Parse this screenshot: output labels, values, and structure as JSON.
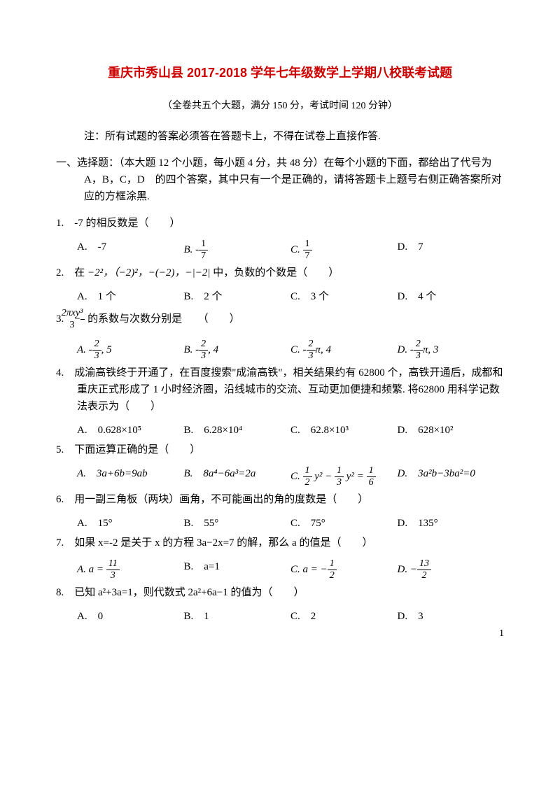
{
  "title": "重庆市秀山县 2017-2018 学年七年级数学上学期八校联考试题",
  "subtitle": "（全卷共五个大题，满分 150 分，考试时间 120 分钟）",
  "note": "注：所有试题的答案必须答在答题卡上，不得在试卷上直接作答.",
  "section1": "一、选择题：（本大题 12 个小题，每小题 4 分，共 48 分）在每个小题的下面，都给出了代号为 A，B，C，D　的四个答案，其中只有一个是正确的，请将答题卡上题号右侧正确答案所对应的方框涂黑.",
  "q1": {
    "stem": "-7 的相反数是（　　）",
    "A": "A.　-7",
    "B_pre": "B. -",
    "B_num": "1",
    "B_den": "7",
    "C_pre": "C. ",
    "C_num": "1",
    "C_den": "7",
    "D": "D.　7"
  },
  "q2": {
    "pre": "在 ",
    "expr": "−2²，（−2)²，−(−2)，−|−2| ",
    "post": "中，负数的个数是（　　）",
    "A": "A.　1 个",
    "B": "B.　2 个",
    "C": "C.　3 个",
    "D": "D.　4 个"
  },
  "q3": {
    "pre": "",
    "frac_num": "2πxy³",
    "frac_den": "3",
    "post": " 的系数与次数分别是　　（　　）",
    "A_pre": "A. -",
    "A_num": "2",
    "A_den": "3",
    "A_post": ", 5",
    "B_pre": "B. -",
    "B_num": "2",
    "B_den": "3",
    "B_post": ", 4",
    "C_pre": "C. -",
    "C_num": "2",
    "C_den": "3",
    "C_post": "π, 4",
    "D_pre": "D. -",
    "D_num": "2",
    "D_den": "3",
    "D_post": "π, 3"
  },
  "q4": {
    "stem": "成渝高铁终于开通了，在百度搜索\"成渝高铁\"，相关结果约有 62800 个，高铁开通后，成都和重庆正式形成了 1 小时经济圈，沿线城市的交流、互动更加便捷和频繁. 将62800 用科学记数法表示为（　　）",
    "A": "A.　0.628×10⁵",
    "B": "B.　6.28×10⁴",
    "C": "C.　62.8×10³",
    "D": "D.　628×10²"
  },
  "q5": {
    "stem": "下面运算正确的是（　　）",
    "A": "A.　3a+6b=9ab",
    "B": "B.　8a⁴−6a³=2a",
    "C_pre": "C. ",
    "C_n1": "1",
    "C_d1": "2",
    "C_mid": " y² − ",
    "C_n2": "1",
    "C_d2": "3",
    "C_mid2": " y² = ",
    "C_n3": "1",
    "C_d3": "6",
    "D": "D.　3a²b−3ba²=0"
  },
  "q6": {
    "stem": "用一副三角板（两块）画角，不可能画出的角的度数是（　　）",
    "A": "A.　15°",
    "B": "B.　55°",
    "C": "C.　75°",
    "D": "D.　135°"
  },
  "q7": {
    "stem": "如果 x=-2 是关于 x 的方程 3a−2x=7 的解，那么 a 的值是（　　）",
    "A_pre": "a = ",
    "A_num": "11",
    "A_den": "3",
    "A_lab": "A.",
    "B": "B.　a=1",
    "C_pre": "a = −",
    "C_num": "1",
    "C_den": "2",
    "C_lab": "C.",
    "D_pre": "−",
    "D_num": "13",
    "D_den": "2",
    "D_lab": "D."
  },
  "q8": {
    "stem": "已知 a²+3a=1，则代数式 2a²+6a−1 的值为（　　）",
    "A": "A.　0",
    "B": "B.　1",
    "C": "C.　2",
    "D": "D.　3"
  },
  "pagenum": "1"
}
